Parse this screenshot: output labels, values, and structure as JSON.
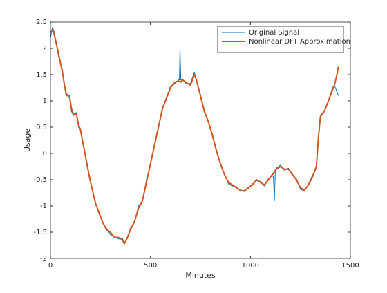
{
  "chart_data": {
    "type": "line",
    "xlabel": "Minutes",
    "ylabel": "Usage",
    "x": [
      0,
      10,
      20,
      40,
      60,
      70,
      80,
      95,
      105,
      115,
      130,
      140,
      150,
      160,
      170,
      180,
      195,
      210,
      225,
      240,
      260,
      280,
      300,
      320,
      340,
      360,
      370,
      385,
      400,
      420,
      440,
      460,
      480,
      500,
      520,
      540,
      560,
      580,
      600,
      620,
      640,
      645,
      648,
      652,
      660,
      680,
      700,
      720,
      730,
      750,
      770,
      790,
      810,
      830,
      850,
      870,
      890,
      910,
      930,
      950,
      970,
      990,
      1010,
      1030,
      1050,
      1070,
      1090,
      1110,
      1115,
      1120,
      1125,
      1130,
      1150,
      1170,
      1190,
      1210,
      1230,
      1250,
      1270,
      1290,
      1310,
      1330,
      1340,
      1350,
      1370,
      1390,
      1410,
      1420,
      1430,
      1440
    ],
    "series": [
      {
        "name": "Original Signal",
        "color": "#0072bd",
        "values": [
          2.2,
          2.4,
          2.3,
          1.85,
          1.6,
          1.25,
          1.15,
          1.05,
          0.8,
          0.72,
          0.78,
          0.5,
          0.48,
          0.2,
          0.08,
          -0.2,
          -0.42,
          -0.72,
          -0.92,
          -1.12,
          -1.32,
          -1.42,
          -1.55,
          -1.58,
          -1.63,
          -1.62,
          -1.7,
          -1.62,
          -1.42,
          -1.32,
          -1.0,
          -0.92,
          -0.5,
          -0.22,
          0.18,
          0.48,
          0.88,
          1.02,
          1.28,
          1.32,
          1.4,
          1.4,
          2.0,
          1.4,
          1.42,
          1.32,
          1.33,
          1.55,
          1.38,
          1.12,
          0.78,
          0.62,
          0.32,
          0.08,
          -0.22,
          -0.38,
          -0.58,
          -0.62,
          -0.63,
          -0.72,
          -0.7,
          -0.67,
          -0.58,
          -0.52,
          -0.53,
          -0.62,
          -0.48,
          -0.42,
          -0.45,
          -0.9,
          -0.3,
          -0.28,
          -0.22,
          -0.32,
          -0.28,
          -0.42,
          -0.48,
          -0.68,
          -0.72,
          -0.58,
          -0.42,
          -0.28,
          0.25,
          0.72,
          0.82,
          0.98,
          1.25,
          1.3,
          1.2,
          1.1
        ]
      },
      {
        "name": "Nonlinear DFT Approximation",
        "color": "#d95319",
        "values": [
          2.3,
          2.35,
          2.25,
          1.9,
          1.55,
          1.3,
          1.1,
          1.1,
          0.85,
          0.75,
          0.75,
          0.55,
          0.45,
          0.25,
          0.05,
          -0.15,
          -0.45,
          -0.7,
          -0.95,
          -1.1,
          -1.3,
          -1.45,
          -1.5,
          -1.6,
          -1.6,
          -1.65,
          -1.72,
          -1.6,
          -1.45,
          -1.3,
          -1.05,
          -0.9,
          -0.55,
          -0.2,
          0.15,
          0.5,
          0.85,
          1.05,
          1.25,
          1.35,
          1.38,
          1.37,
          1.37,
          1.36,
          1.4,
          1.35,
          1.3,
          1.5,
          1.4,
          1.1,
          0.8,
          0.6,
          0.35,
          0.05,
          -0.2,
          -0.4,
          -0.55,
          -0.6,
          -0.65,
          -0.7,
          -0.72,
          -0.65,
          -0.6,
          -0.5,
          -0.55,
          -0.6,
          -0.5,
          -0.4,
          -0.38,
          -0.35,
          -0.32,
          -0.3,
          -0.25,
          -0.3,
          -0.3,
          -0.4,
          -0.5,
          -0.65,
          -0.7,
          -0.6,
          -0.45,
          -0.25,
          0.3,
          0.7,
          0.8,
          1.0,
          1.2,
          1.3,
          1.45,
          1.65
        ]
      }
    ],
    "xlim": [
      0,
      1500
    ],
    "xticks": [
      0,
      500,
      1000,
      1500
    ],
    "ylim": [
      -2,
      2.5
    ],
    "yticks": [
      -2,
      -1.5,
      -1,
      -0.5,
      0,
      0.5,
      1,
      1.5,
      2,
      2.5
    ],
    "legend": "northeast",
    "grid": false
  }
}
